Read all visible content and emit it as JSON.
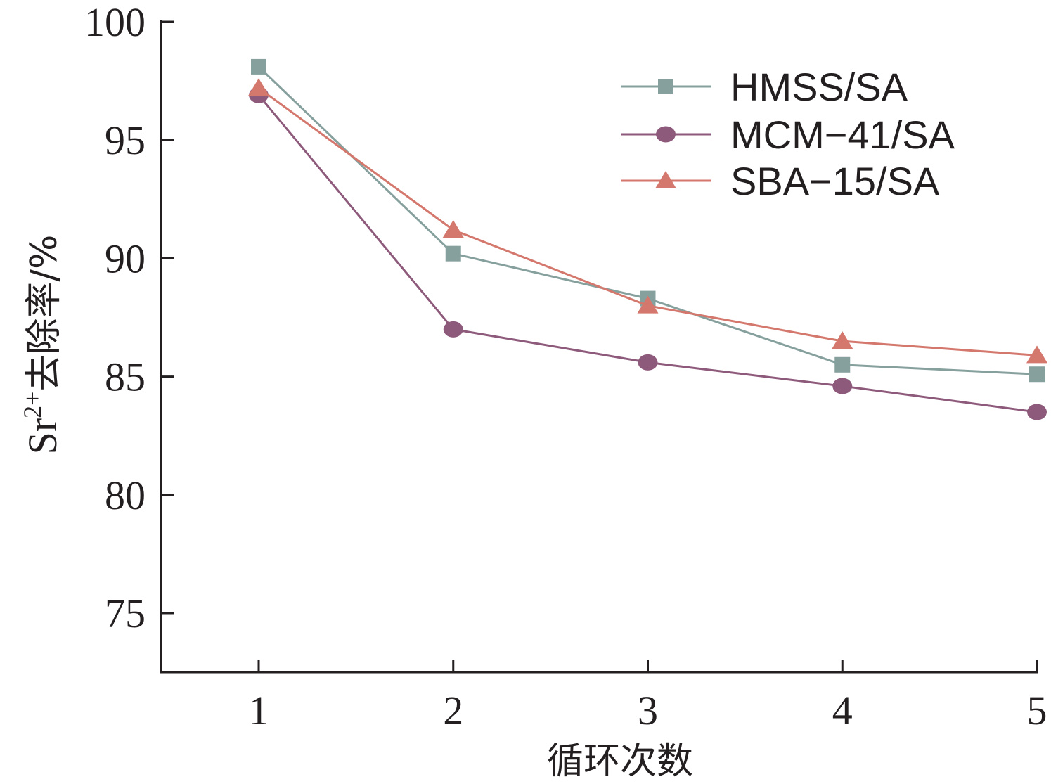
{
  "chart_data": {
    "type": "line",
    "xlabel": "循环次数",
    "ylabel": "Sr²⁺去除率/%",
    "ylabel_parts": {
      "base": "Sr",
      "sup": "2+",
      "rest": "去除率/%"
    },
    "x": [
      1,
      2,
      3,
      4,
      5
    ],
    "xlim": [
      0.5,
      5
    ],
    "ylim": [
      72.5,
      100
    ],
    "yticks": [
      75,
      80,
      85,
      90,
      95,
      100
    ],
    "xticks": [
      1,
      2,
      3,
      4,
      5
    ],
    "grid": false,
    "legend_position": "top-right",
    "series": [
      {
        "name": "HMSS/SA",
        "values": [
          98.1,
          90.2,
          88.3,
          85.5,
          85.1
        ],
        "color": "#86a09d",
        "marker": "square"
      },
      {
        "name": "MCM−41/SA",
        "values": [
          96.9,
          87.0,
          85.6,
          84.6,
          83.5
        ],
        "color": "#8e5a7b",
        "marker": "circle"
      },
      {
        "name": "SBA−15/SA",
        "values": [
          97.2,
          91.2,
          88.0,
          86.5,
          85.9
        ],
        "color": "#d4776c",
        "marker": "triangle"
      }
    ]
  }
}
